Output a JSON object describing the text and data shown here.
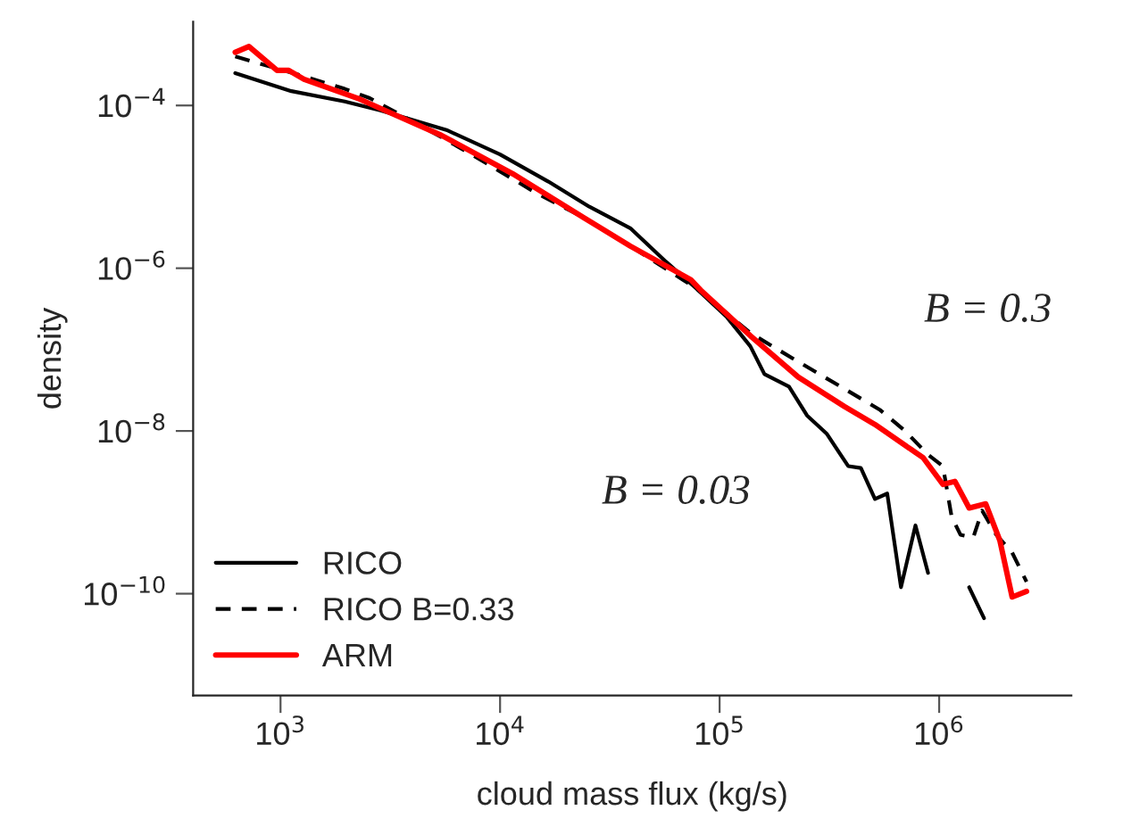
{
  "chart_data": {
    "type": "line",
    "xlabel": "cloud mass flux (kg/s)",
    "ylabel": "density",
    "log": "xy",
    "grid": false,
    "legend": "bottom left",
    "xlim": [
      400,
      4000000
    ],
    "ylim": [
      5.6e-12,
      0.00107
    ],
    "xticks": [
      {
        "value": 1000,
        "label": "10$^{3}$"
      },
      {
        "value": 10000,
        "label": "10$^{4}$"
      },
      {
        "value": 100000,
        "label": "10$^{5}$"
      },
      {
        "value": 1000000,
        "label": "10$^{6}$"
      }
    ],
    "yticks": [
      {
        "value": 0.0001,
        "label": "10$^{−4}$"
      },
      {
        "value": 1e-06,
        "label": "10$^{−6}$"
      },
      {
        "value": 1e-08,
        "label": "10$^{−8}$"
      },
      {
        "value": 1e-10,
        "label": "10$^{−10}$"
      }
    ],
    "series": [
      {
        "name": "RICO",
        "color": "#000000",
        "line_style": "solid",
        "x": [
          622,
          1120,
          1960,
          2850,
          5700,
          10000,
          16600,
          25500,
          39200,
          57000,
          78000,
          108000,
          138000,
          160000,
          207000,
          250000,
          307000,
          385000,
          440000,
          510000,
          580000,
          670000,
          780000,
          890000,
          1100000,
          1370000,
          1600000
        ],
        "values": [
          0.00025,
          0.00015,
          0.000112,
          8.7e-05,
          5e-05,
          2.5e-05,
          1.16e-05,
          5.7e-06,
          3.1e-06,
          1.2e-06,
          5.7e-07,
          2.5e-07,
          1.1e-07,
          5e-08,
          3.5e-08,
          1.55e-08,
          9.3e-09,
          3.7e-09,
          3.5e-09,
          1.46e-09,
          1.7e-09,
          1.2e-10,
          6.9e-10,
          1.8e-10,
          null,
          1.2e-10,
          5e-11
        ]
      },
      {
        "name": "RICO B=0.33",
        "color": "#000000",
        "line_style": "dashed",
        "x": [
          622,
          1200,
          1960,
          2550,
          5400,
          8800,
          14500,
          24000,
          39200,
          78000,
          95000,
          138000,
          228000,
          370000,
          540000,
          700000,
          890000,
          1040000,
          1140000,
          1250000,
          1430000,
          1570000,
          1820000,
          2150000,
          2500000
        ],
        "values": [
          0.0004,
          0.00024,
          0.00016,
          0.000123,
          4.1e-05,
          1.9e-05,
          8.5e-06,
          4.2e-06,
          1.87e-06,
          5.7e-07,
          3.7e-07,
          1.6e-07,
          7.1e-08,
          3.3e-08,
          1.8e-08,
          1e-08,
          5.1e-09,
          3.7e-09,
          8.8e-10,
          5.3e-10,
          4.9e-10,
          1.05e-09,
          5.3e-10,
          3.2e-10,
          1.4e-10
        ]
      },
      {
        "name": "ARM",
        "color": "#ff0000",
        "line_style": "solid",
        "x": [
          622,
          718,
          964,
          1090,
          1280,
          2240,
          2850,
          5400,
          11400,
          24000,
          39200,
          74000,
          83000,
          138000,
          228000,
          370000,
          510000,
          740000,
          845000,
          1040000,
          1180000,
          1370000,
          1630000,
          1890000,
          2150000,
          2500000
        ],
        "values": [
          0.00045,
          0.00053,
          0.00027,
          0.00027,
          0.00021,
          0.000123,
          9.2e-05,
          4.3e-05,
          1.45e-05,
          4.2e-06,
          1.87e-06,
          7.2e-07,
          5.2e-07,
          1.48e-07,
          4.6e-08,
          2e-08,
          1.2e-08,
          6e-09,
          4.7e-09,
          2.2e-09,
          2.4e-09,
          1.13e-09,
          1.27e-09,
          4.5e-10,
          9.1e-11,
          1.07e-10
        ]
      }
    ],
    "annotations": [
      "B = 0.3",
      "B = 0.03"
    ]
  }
}
